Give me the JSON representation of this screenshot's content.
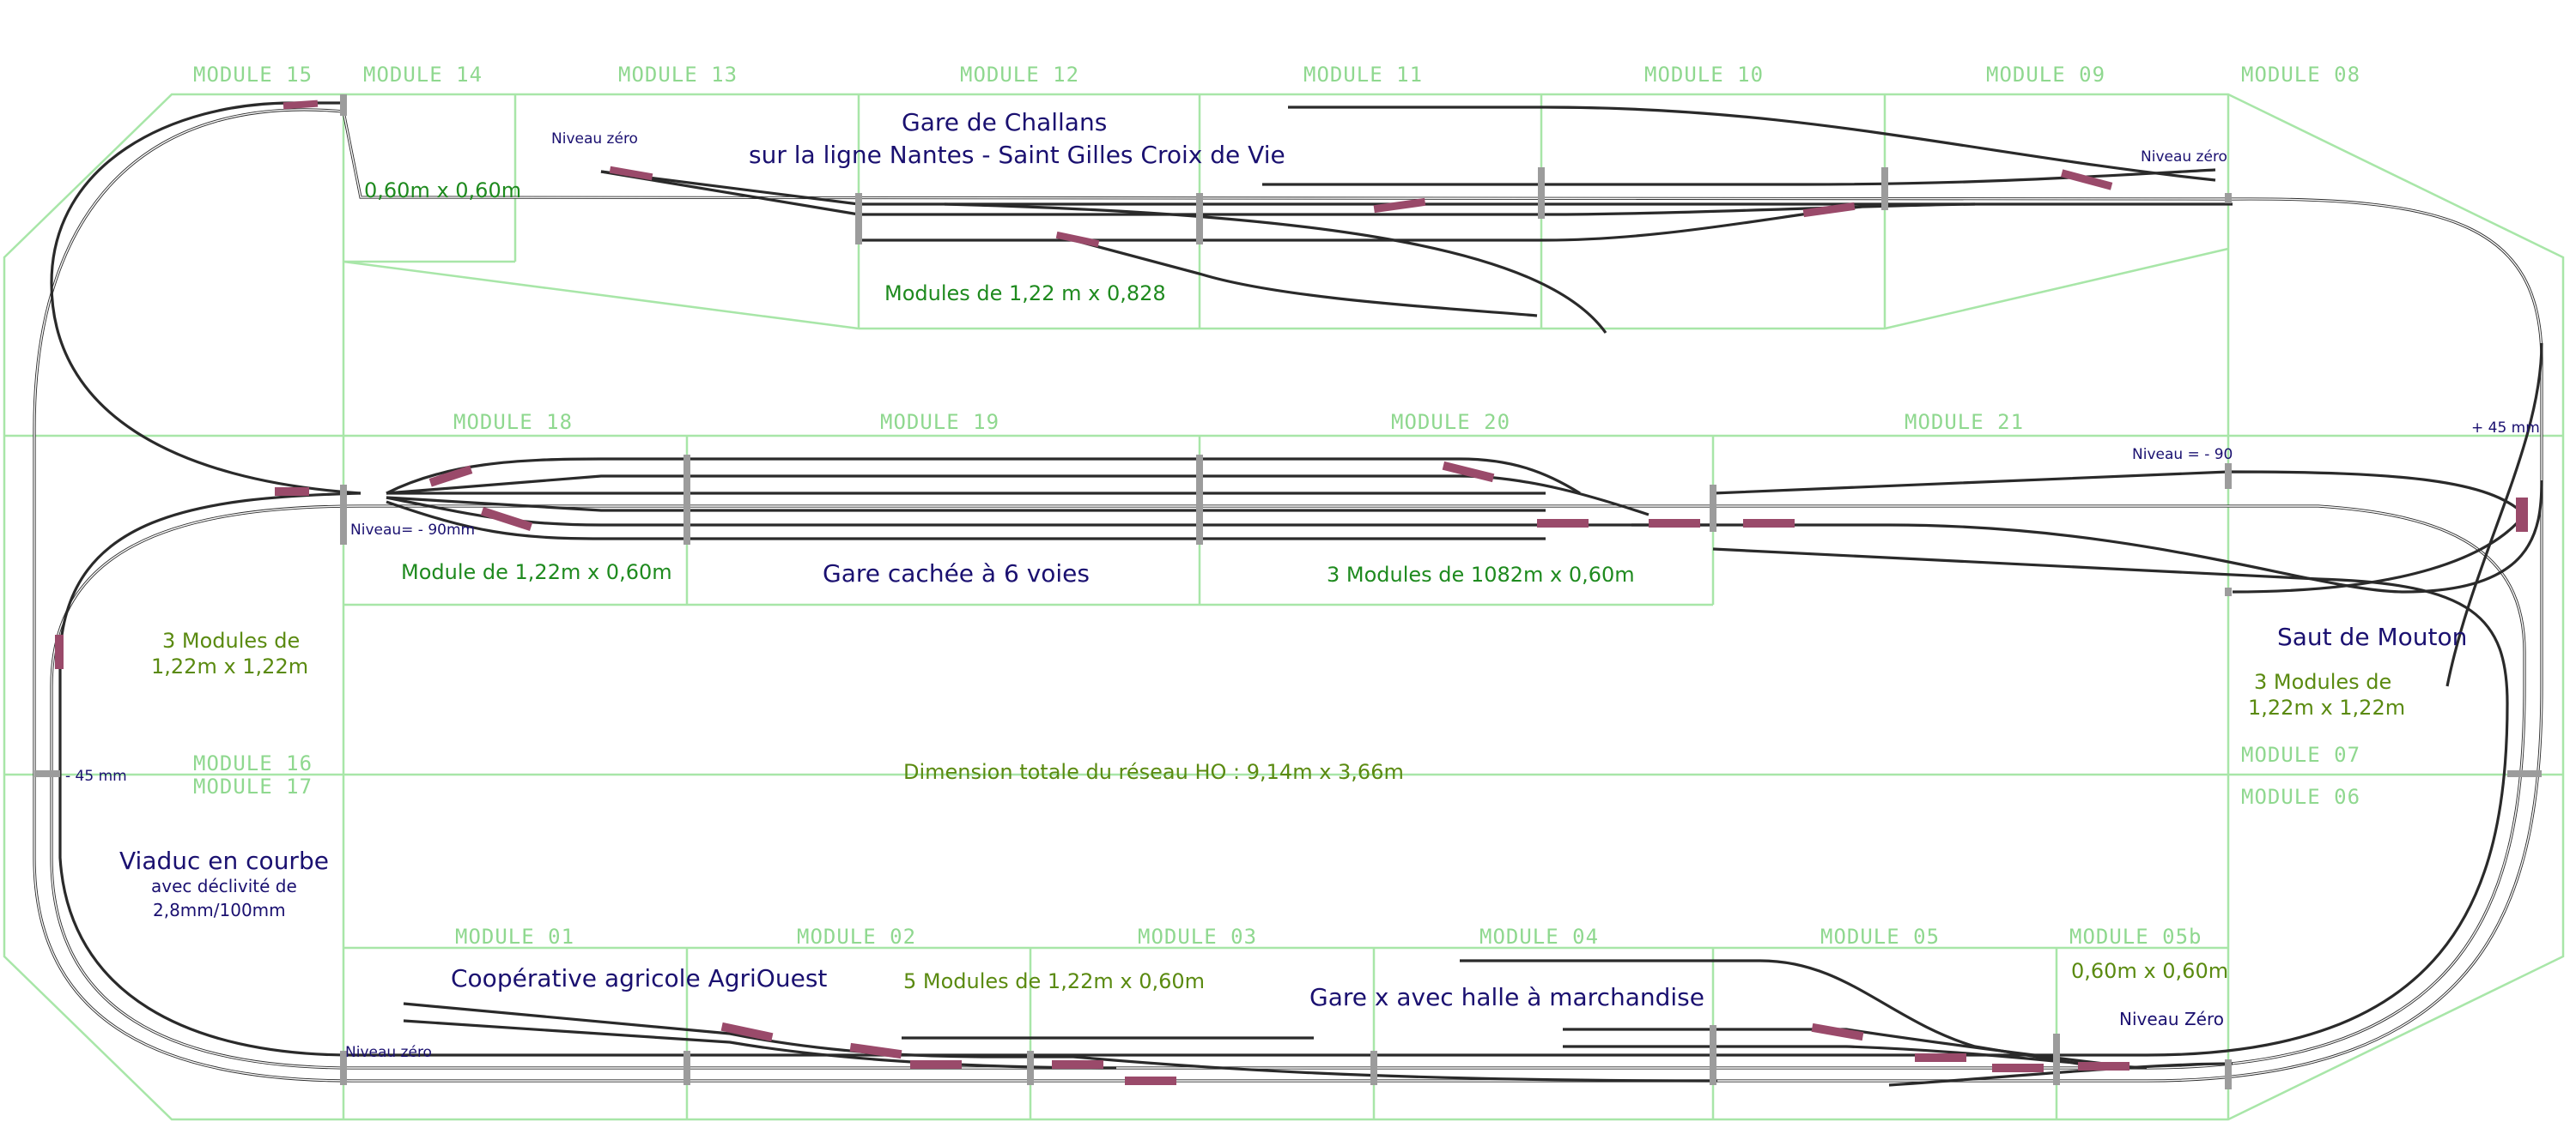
{
  "modules": {
    "m15": "MODULE 15",
    "m14": "MODULE 14",
    "m13": "MODULE 13",
    "m12": "MODULE 12",
    "m11": "MODULE 11",
    "m10": "MODULE 10",
    "m09": "MODULE 09",
    "m08": "MODULE 08",
    "m18": "MODULE 18",
    "m19": "MODULE 19",
    "m20": "MODULE 20",
    "m21": "MODULE 21",
    "m16": "MODULE 16",
    "m17": "MODULE 17",
    "m07": "MODULE 07",
    "m06": "MODULE 06",
    "m01": "MODULE 01",
    "m02": "MODULE 02",
    "m03": "MODULE 03",
    "m04": "MODULE 04",
    "m05": "MODULE 05",
    "m05b": "MODULE 05b"
  },
  "top": {
    "station_title": "Gare de Challans",
    "station_line": "sur la ligne Nantes - Saint Gilles Croix de Vie",
    "corner_size": "0,60m x 0,60m",
    "level_left": "Niveau zéro",
    "level_right": "Niveau zéro",
    "modules_size": "Modules de 1,22 m x 0,828"
  },
  "middle": {
    "level_left": "Niveau= - 90mm",
    "level_right": "Niveau = - 90",
    "plus45": "+ 45 mm",
    "module_size_left": "Module de 1,22m x 0,60m",
    "hidden_station": "Gare cachée à 6 voies",
    "modules_size_right": "3 Modules de 1082m x 0,60m"
  },
  "left": {
    "modules_line1": "3 Modules de",
    "modules_line2": "1,22m x 1,22m",
    "minus45": "- 45 mm",
    "viaduct_title": "Viaduc en courbe",
    "viaduct_line1": "avec déclivité de",
    "viaduct_line2": "2,8mm/100mm"
  },
  "right": {
    "flyover_title": "Saut de Mouton",
    "modules_line1": "3 Modules de",
    "modules_line2": "1,22m x 1,22m"
  },
  "center": {
    "total_dimension": "Dimension totale du réseau HO : 9,14m x 3,66m"
  },
  "bottom": {
    "coop_title": "Coopérative agricole AgriOuest",
    "modules_size": "5 Modules de 1,22m x 0,60m",
    "station_title": "Gare x avec halle à marchandise",
    "corner_size": "0,60m x 0,60m",
    "level_right": "Niveau Zéro",
    "level_left": "Niveau zéro"
  },
  "colors": {
    "board_outline": "#a8e6a8",
    "module_label": "#8fd88f",
    "track": "#2a2a2a",
    "turnout": "#9a4a6a",
    "text_green": "#1e8a1e",
    "text_olive": "#5a8a10",
    "text_navy": "#1a1070"
  }
}
